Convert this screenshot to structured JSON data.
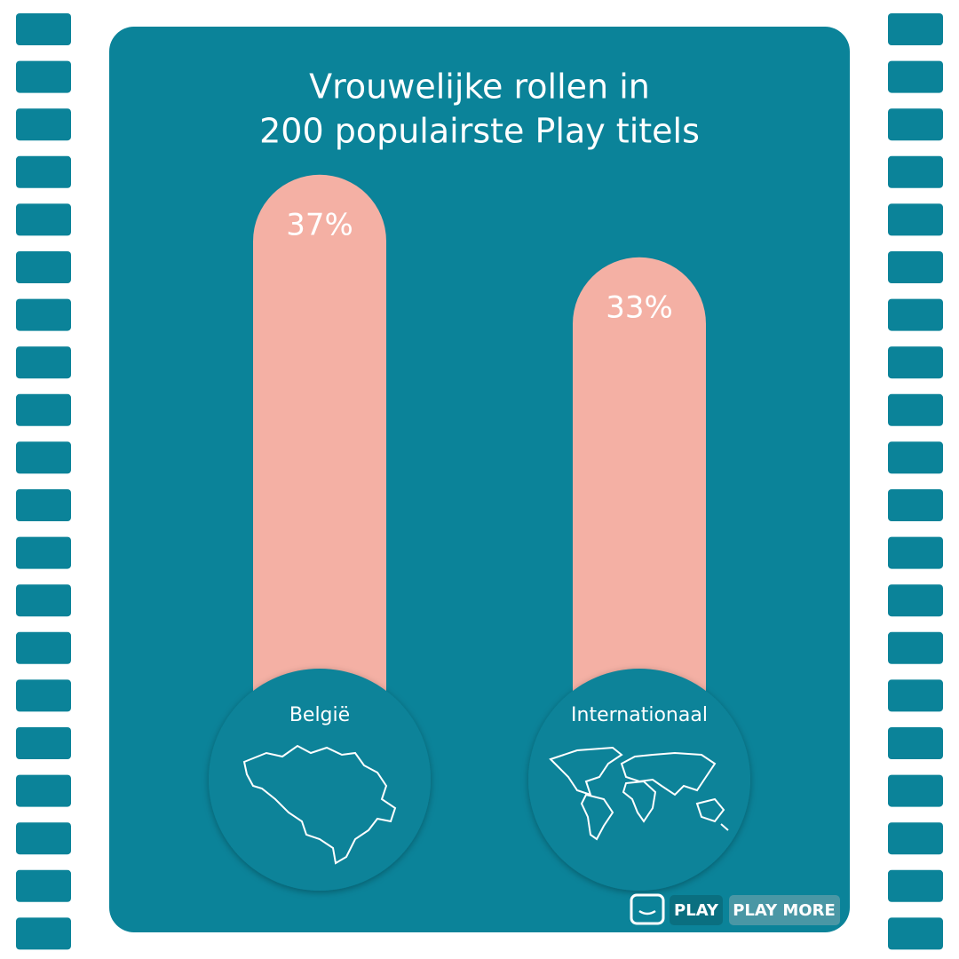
{
  "chart_data": {
    "type": "bar",
    "title": [
      "Vrouwelijke rollen in",
      "200 populairste Play titels"
    ],
    "categories": [
      "België",
      "Internationaal"
    ],
    "values": [
      37,
      33
    ],
    "value_labels": [
      "37%",
      "33%"
    ],
    "color": "#f4b0a4"
  },
  "logo": {
    "play": "PLAY",
    "play_more": "PLAY MORE"
  }
}
